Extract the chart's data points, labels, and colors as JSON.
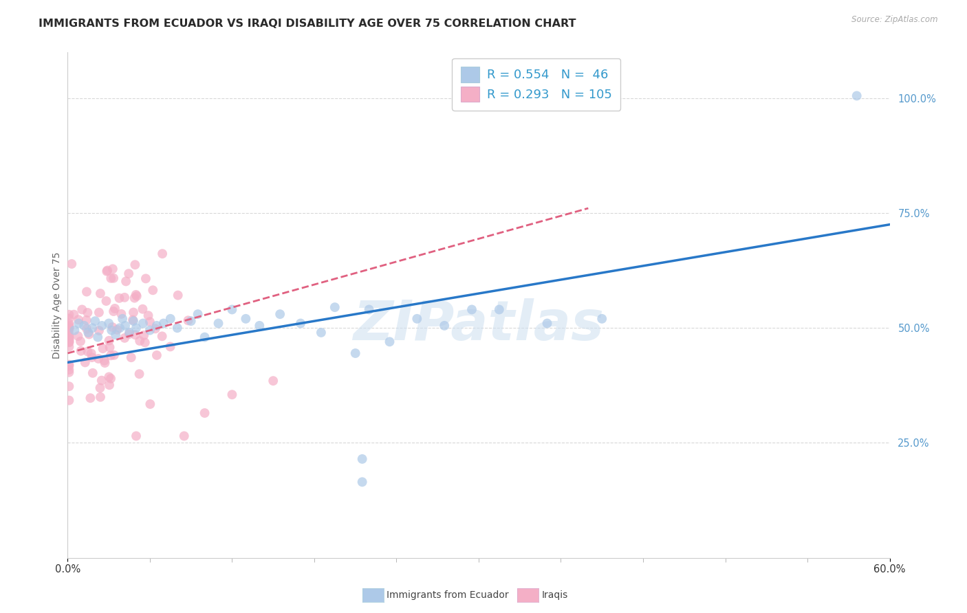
{
  "title": "IMMIGRANTS FROM ECUADOR VS IRAQI DISABILITY AGE OVER 75 CORRELATION CHART",
  "source": "Source: ZipAtlas.com",
  "ylabel_label": "Disability Age Over 75",
  "watermark_text": "ZIPatlas",
  "ecuador_R": 0.554,
  "ecuador_N": 46,
  "iraqi_R": 0.293,
  "iraqi_N": 105,
  "x_min": 0.0,
  "x_max": 0.6,
  "y_min": 0.0,
  "y_max": 1.1,
  "ecuador_scatter_color": "#adc9e8",
  "iraqi_scatter_color": "#f4afc6",
  "ecuador_line_color": "#2878c8",
  "iraqi_line_color": "#e06080",
  "grid_color": "#d8d8d8",
  "bg_color": "#ffffff",
  "title_fontsize": 11.5,
  "axis_label_fontsize": 10,
  "tick_fontsize": 10.5,
  "legend_text_color": "#444444",
  "legend_value_color": "#3399cc",
  "right_axis_color": "#5599cc",
  "watermark_color": "#cddff0",
  "watermark_alpha": 0.55,
  "watermark_fontsize": 58,
  "scatter_size": 100,
  "scatter_alpha": 0.7,
  "bottom_label1": "Immigrants from Ecuador",
  "bottom_label2": "Iraqis",
  "ecuador_trendline_intercept": 0.425,
  "ecuador_trendline_slope": 0.5,
  "iraqi_trendline_intercept": 0.445,
  "iraqi_trendline_slope": 0.83
}
